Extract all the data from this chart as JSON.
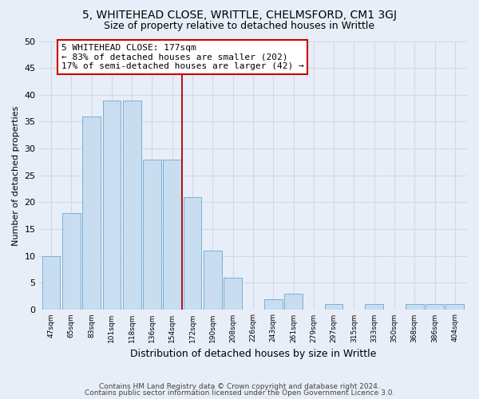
{
  "title": "5, WHITEHEAD CLOSE, WRITTLE, CHELMSFORD, CM1 3GJ",
  "subtitle": "Size of property relative to detached houses in Writtle",
  "xlabel": "Distribution of detached houses by size in Writtle",
  "ylabel": "Number of detached properties",
  "bar_labels": [
    "47sqm",
    "65sqm",
    "83sqm",
    "101sqm",
    "118sqm",
    "136sqm",
    "154sqm",
    "172sqm",
    "190sqm",
    "208sqm",
    "226sqm",
    "243sqm",
    "261sqm",
    "279sqm",
    "297sqm",
    "315sqm",
    "333sqm",
    "350sqm",
    "368sqm",
    "386sqm",
    "404sqm"
  ],
  "bar_heights": [
    10,
    18,
    36,
    39,
    39,
    28,
    28,
    21,
    11,
    6,
    0,
    2,
    3,
    0,
    1,
    0,
    1,
    0,
    1,
    1,
    1
  ],
  "bar_color": "#c8ddf0",
  "bar_edge_color": "#7bafd4",
  "reference_line_x_label": "172sqm",
  "reference_line_color": "#aa0000",
  "ylim": [
    0,
    50
  ],
  "yticks": [
    0,
    5,
    10,
    15,
    20,
    25,
    30,
    35,
    40,
    45,
    50
  ],
  "annotation_text": "5 WHITEHEAD CLOSE: 177sqm\n← 83% of detached houses are smaller (202)\n17% of semi-detached houses are larger (42) →",
  "annotation_box_color": "#ffffff",
  "annotation_box_edge_color": "#cc0000",
  "footer_line1": "Contains HM Land Registry data © Crown copyright and database right 2024.",
  "footer_line2": "Contains public sector information licensed under the Open Government Licence 3.0.",
  "background_color": "#e8eef8",
  "grid_color": "#d0d8e8",
  "title_fontsize": 10,
  "subtitle_fontsize": 9,
  "annotation_fontsize": 8,
  "footer_fontsize": 6.5,
  "ylabel_fontsize": 8,
  "xlabel_fontsize": 9
}
